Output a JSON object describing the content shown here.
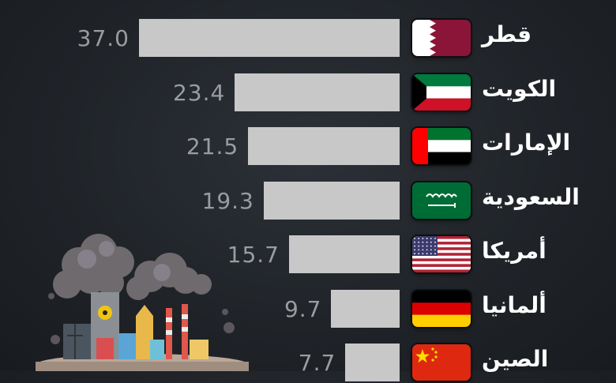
{
  "chart_data": {
    "type": "bar",
    "orientation": "horizontal",
    "categories": [
      "قطر",
      "الكويت",
      "الإمارات",
      "السعودية",
      "أمريكا",
      "ألمانيا",
      "الصين"
    ],
    "values": [
      37.0,
      23.4,
      21.5,
      19.3,
      15.7,
      9.7,
      7.7
    ],
    "value_labels": [
      "37.0",
      "23.4",
      "21.5",
      "19.3",
      "15.7",
      "9.7",
      "7.7"
    ],
    "flags": [
      "qatar-flag-icon",
      "kuwait-flag-icon",
      "uae-flag-icon",
      "saudi-flag-icon",
      "usa-flag-icon",
      "germany-flag-icon",
      "china-flag-icon"
    ],
    "bar_color": "#c8c8c8",
    "background": "#23272c"
  },
  "illustration": "polluting-factory-icon"
}
